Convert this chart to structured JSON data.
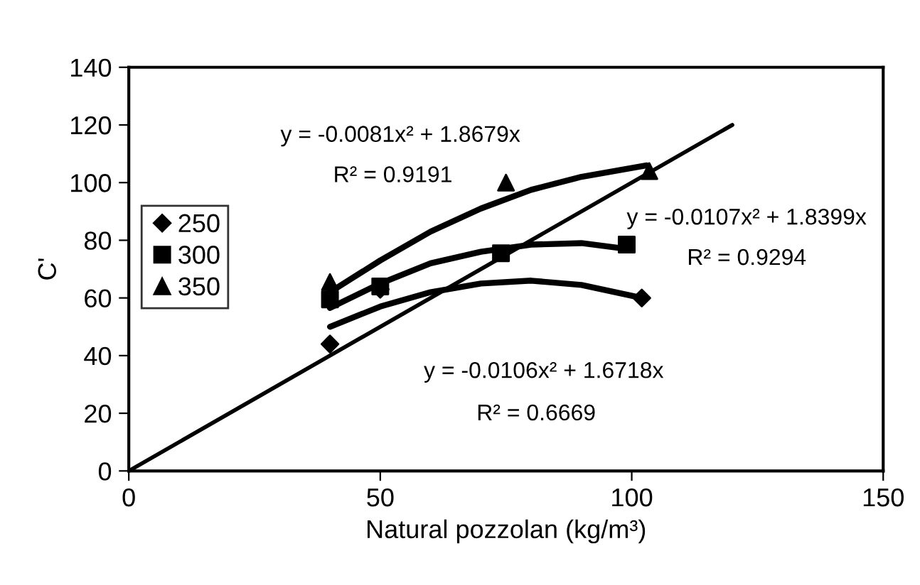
{
  "chart_data": {
    "type": "scatter",
    "xlabel": "Natural pozzolan (kg/m³)",
    "ylabel": "C'",
    "xlim": [
      0,
      150
    ],
    "ylim": [
      0,
      140
    ],
    "xticks": [
      0,
      50,
      100,
      150
    ],
    "yticks": [
      0,
      20,
      40,
      60,
      80,
      100,
      120,
      140
    ],
    "grid": false,
    "legend": "left",
    "series": [
      {
        "name": "250",
        "color": "#000000",
        "marker": "diamond",
        "x": [
          40,
          50,
          102
        ],
        "values": [
          44,
          63,
          60
        ]
      },
      {
        "name": "300",
        "color": "#000000",
        "marker": "square",
        "x": [
          40,
          50,
          74,
          99
        ],
        "values": [
          59.5,
          64,
          75.5,
          78.5
        ]
      },
      {
        "name": "350",
        "color": "#000000",
        "marker": "triangle",
        "x": [
          40,
          75,
          103.5
        ],
        "values": [
          65.5,
          100,
          104
        ]
      },
      {
        "type": "line",
        "color": "#000000",
        "marker": "none",
        "x": [
          40,
          50,
          60,
          70,
          80,
          90,
          102
        ],
        "values": [
          50,
          57,
          62,
          65,
          66,
          64.5,
          60
        ]
      },
      {
        "type": "line",
        "color": "#000000",
        "marker": "none",
        "x": [
          40,
          50,
          60,
          70,
          80,
          90,
          99
        ],
        "values": [
          56.5,
          65,
          72,
          76,
          78.5,
          79,
          77
        ]
      },
      {
        "type": "line",
        "color": "#000000",
        "marker": "none",
        "x": [
          40,
          50,
          60,
          70,
          80,
          90,
          103
        ],
        "values": [
          62,
          73,
          83,
          91,
          97.5,
          102,
          106
        ]
      },
      {
        "type": "line",
        "color": "#000000",
        "marker": "none",
        "x": [
          0,
          120
        ],
        "values": [
          0,
          120
        ]
      }
    ],
    "annotations": [
      "y = -0.0081x² + 1.8679x",
      "R² = 0.9191",
      "y = -0.0107x² + 1.8399x",
      "R² = 0.9294",
      "y = -0.0106x² + 1.6718x",
      "R² = 0.6669"
    ]
  }
}
